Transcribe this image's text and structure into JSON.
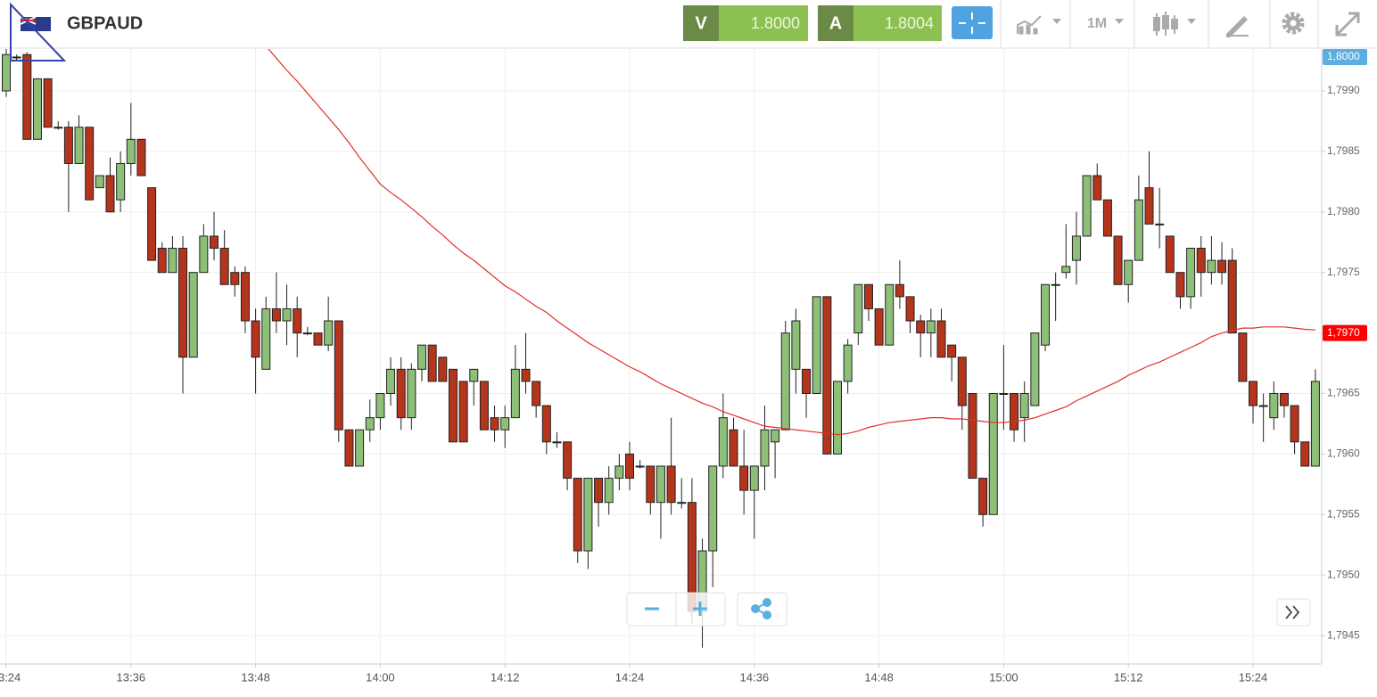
{
  "header": {
    "bid_label": "V",
    "bid": "1.8000",
    "ask_label": "A",
    "ask": "1.8004",
    "interval": "1M"
  },
  "chart_data": {
    "type": "candlestick",
    "title": "GBPAUD",
    "x": [
      "13:24",
      "13:25",
      "13:26",
      "13:27",
      "13:28",
      "13:29",
      "13:30",
      "13:31",
      "13:32",
      "13:33",
      "13:34",
      "13:35",
      "13:36",
      "13:37",
      "13:38",
      "13:39",
      "13:40",
      "13:41",
      "13:42",
      "13:43",
      "13:44",
      "13:45",
      "13:46",
      "13:47",
      "13:48",
      "13:49",
      "13:50",
      "13:51",
      "13:52",
      "13:53",
      "13:54",
      "13:55",
      "13:56",
      "13:57",
      "13:58",
      "13:59",
      "14:00",
      "14:01",
      "14:02",
      "14:03",
      "14:04",
      "14:05",
      "14:06",
      "14:07",
      "14:08",
      "14:09",
      "14:10",
      "14:11",
      "14:12",
      "14:13",
      "14:14",
      "14:15",
      "14:16",
      "14:17",
      "14:18",
      "14:19",
      "14:20",
      "14:21",
      "14:22",
      "14:23",
      "14:24",
      "14:25",
      "14:26",
      "14:27",
      "14:28",
      "14:29",
      "14:30",
      "14:31",
      "14:32",
      "14:33",
      "14:34",
      "14:35",
      "14:36",
      "14:37",
      "14:38",
      "14:39",
      "14:40",
      "14:41",
      "14:42",
      "14:43",
      "14:44",
      "14:45",
      "14:46",
      "14:47",
      "14:48",
      "14:49",
      "14:50",
      "14:51",
      "14:52",
      "14:53",
      "14:54",
      "14:55",
      "14:56",
      "14:57",
      "14:58",
      "14:59",
      "15:00",
      "15:01",
      "15:02",
      "15:03",
      "15:04",
      "15:05",
      "15:06",
      "15:07",
      "15:08",
      "15:09",
      "15:10",
      "15:11",
      "15:12",
      "15:13",
      "15:14",
      "15:15",
      "15:16",
      "15:17",
      "15:18",
      "15:19",
      "15:20",
      "15:21",
      "15:22",
      "15:23",
      "15:24",
      "15:25",
      "15:26",
      "15:27",
      "15:28",
      "15:29",
      "15:30"
    ],
    "open": [
      1.799,
      1.79928,
      1.7993,
      1.7986,
      1.7991,
      1.7987,
      1.7987,
      1.7984,
      1.7987,
      1.7982,
      1.7983,
      1.7981,
      1.7984,
      1.7986,
      1.7982,
      1.7977,
      1.7975,
      1.7977,
      1.7968,
      1.7975,
      1.7978,
      1.7977,
      1.7975,
      1.7975,
      1.7971,
      1.7967,
      1.7972,
      1.7971,
      1.7972,
      1.797,
      1.797,
      1.7969,
      1.7971,
      1.7962,
      1.7959,
      1.7962,
      1.7963,
      1.7965,
      1.7967,
      1.7963,
      1.7967,
      1.7969,
      1.7968,
      1.7967,
      1.7966,
      1.7966,
      1.7966,
      1.7963,
      1.7962,
      1.7963,
      1.7967,
      1.7966,
      1.7964,
      1.7961,
      1.7961,
      1.7958,
      1.7952,
      1.7958,
      1.7956,
      1.7958,
      1.796,
      1.7959,
      1.7959,
      1.7956,
      1.7959,
      1.7956,
      1.7956,
      1.7947,
      1.7952,
      1.7959,
      1.7962,
      1.7959,
      1.7957,
      1.7959,
      1.7961,
      1.7962,
      1.7967,
      1.7967,
      1.7965,
      1.7973,
      1.796,
      1.7966,
      1.797,
      1.7974,
      1.7972,
      1.7969,
      1.7974,
      1.7973,
      1.7971,
      1.797,
      1.7971,
      1.7969,
      1.7968,
      1.7965,
      1.7958,
      1.7955,
      1.7965,
      1.7965,
      1.7963,
      1.7964,
      1.7969,
      1.7974,
      1.7975,
      1.7976,
      1.7978,
      1.7983,
      1.7981,
      1.7978,
      1.7974,
      1.7976,
      1.7982,
      1.7979,
      1.7978,
      1.7975,
      1.7973,
      1.7977,
      1.7975,
      1.7976,
      1.7976,
      1.797,
      1.7966,
      1.7964,
      1.7963,
      1.7965,
      1.7964,
      1.7961,
      1.7959
    ],
    "high": [
      1.79935,
      1.7993,
      1.79932,
      1.7991,
      1.7991,
      1.79875,
      1.79875,
      1.7988,
      1.7987,
      1.7983,
      1.79845,
      1.7985,
      1.7989,
      1.7986,
      1.7982,
      1.79775,
      1.7978,
      1.7978,
      1.7975,
      1.7979,
      1.798,
      1.79785,
      1.79755,
      1.79755,
      1.7972,
      1.7973,
      1.7975,
      1.7974,
      1.7973,
      1.79705,
      1.797,
      1.7973,
      1.7971,
      1.7962,
      1.7962,
      1.79645,
      1.7965,
      1.7968,
      1.7968,
      1.79675,
      1.7969,
      1.7969,
      1.7968,
      1.7967,
      1.7966,
      1.7967,
      1.7966,
      1.7964,
      1.7964,
      1.7969,
      1.797,
      1.7966,
      1.7964,
      1.79618,
      1.7961,
      1.7958,
      1.7958,
      1.7958,
      1.7959,
      1.796,
      1.7961,
      1.79595,
      1.7959,
      1.7959,
      1.7963,
      1.7958,
      1.7958,
      1.7953,
      1.7959,
      1.7965,
      1.7963,
      1.7962,
      1.7959,
      1.7964,
      1.7962,
      1.7971,
      1.7972,
      1.7967,
      1.7973,
      1.7973,
      1.7966,
      1.79695,
      1.7974,
      1.7974,
      1.7972,
      1.7974,
      1.7976,
      1.7973,
      1.79715,
      1.7972,
      1.7972,
      1.7969,
      1.7968,
      1.7965,
      1.7958,
      1.7965,
      1.7969,
      1.7965,
      1.7966,
      1.797,
      1.7974,
      1.7975,
      1.7979,
      1.798,
      1.7983,
      1.7984,
      1.7981,
      1.7978,
      1.7976,
      1.7983,
      1.7985,
      1.7982,
      1.7978,
      1.7975,
      1.7977,
      1.7978,
      1.7978,
      1.79775,
      1.7977,
      1.797,
      1.7966,
      1.7965,
      1.7966,
      1.7965,
      1.7964,
      1.7961,
      1.7967
    ],
    "low": [
      1.79895,
      1.79925,
      1.7986,
      1.7986,
      1.7987,
      1.79868,
      1.798,
      1.7984,
      1.7981,
      1.7982,
      1.798,
      1.798,
      1.7983,
      1.7983,
      1.7976,
      1.7975,
      1.7975,
      1.7965,
      1.7968,
      1.7975,
      1.7976,
      1.7974,
      1.7973,
      1.797,
      1.7965,
      1.7967,
      1.797,
      1.7969,
      1.7968,
      1.79698,
      1.7969,
      1.79685,
      1.7961,
      1.7959,
      1.7959,
      1.7961,
      1.7962,
      1.7964,
      1.7962,
      1.7962,
      1.7966,
      1.7966,
      1.7966,
      1.7961,
      1.7961,
      1.7964,
      1.7962,
      1.7961,
      1.79605,
      1.7963,
      1.7965,
      1.7963,
      1.796,
      1.79605,
      1.7957,
      1.7951,
      1.79505,
      1.7954,
      1.7955,
      1.7957,
      1.7957,
      1.79588,
      1.7955,
      1.7953,
      1.7955,
      1.79555,
      1.7946,
      1.7944,
      1.7949,
      1.7958,
      1.7959,
      1.7955,
      1.7953,
      1.7957,
      1.7958,
      1.7962,
      1.7965,
      1.7963,
      1.7965,
      1.796,
      1.796,
      1.7965,
      1.7969,
      1.7971,
      1.7969,
      1.7969,
      1.7972,
      1.797,
      1.7968,
      1.7968,
      1.7968,
      1.7966,
      1.7962,
      1.7958,
      1.7954,
      1.7955,
      1.7962,
      1.7961,
      1.7961,
      1.7964,
      1.79685,
      1.7971,
      1.79745,
      1.7974,
      1.7978,
      1.7981,
      1.7978,
      1.7974,
      1.79725,
      1.7976,
      1.7979,
      1.7977,
      1.7975,
      1.7972,
      1.7972,
      1.7973,
      1.7974,
      1.7974,
      1.797,
      1.7966,
      1.79625,
      1.7961,
      1.7962,
      1.7963,
      1.796,
      1.7959,
      1.7959
    ],
    "close": [
      1.7993,
      1.79928,
      1.7986,
      1.7991,
      1.7987,
      1.7987,
      1.7984,
      1.7987,
      1.7981,
      1.7983,
      1.798,
      1.7984,
      1.7986,
      1.7983,
      1.7976,
      1.7975,
      1.7977,
      1.7968,
      1.7975,
      1.7978,
      1.7977,
      1.7974,
      1.7974,
      1.7971,
      1.7968,
      1.7972,
      1.7971,
      1.7972,
      1.797,
      1.797,
      1.7969,
      1.7971,
      1.7962,
      1.7959,
      1.7962,
      1.7963,
      1.7965,
      1.7967,
      1.7963,
      1.7967,
      1.7969,
      1.7966,
      1.7966,
      1.7961,
      1.7961,
      1.7967,
      1.7962,
      1.7962,
      1.7963,
      1.7967,
      1.7966,
      1.7964,
      1.7961,
      1.7961,
      1.7958,
      1.7952,
      1.7958,
      1.7956,
      1.7958,
      1.7959,
      1.7958,
      1.7959,
      1.7956,
      1.7959,
      1.7956,
      1.7956,
      1.7947,
      1.7952,
      1.7959,
      1.7963,
      1.7959,
      1.7957,
      1.7959,
      1.7962,
      1.7962,
      1.797,
      1.7971,
      1.7965,
      1.7973,
      1.796,
      1.7966,
      1.7969,
      1.7974,
      1.7972,
      1.7969,
      1.7974,
      1.7973,
      1.7971,
      1.797,
      1.7971,
      1.7968,
      1.7968,
      1.7964,
      1.7958,
      1.7955,
      1.7965,
      1.7965,
      1.7962,
      1.7965,
      1.797,
      1.7974,
      1.7974,
      1.79755,
      1.7978,
      1.7983,
      1.7981,
      1.7978,
      1.7974,
      1.7976,
      1.7981,
      1.7979,
      1.7979,
      1.7975,
      1.7973,
      1.7977,
      1.7975,
      1.7976,
      1.7975,
      1.797,
      1.7966,
      1.7964,
      1.7964,
      1.7965,
      1.7964,
      1.7961,
      1.7959,
      1.7966
    ],
    "up_color": "#8dbf78",
    "down_color": "#b5351c",
    "lines": [
      {
        "color": "#e0302a",
        "values": [
          null,
          null,
          null,
          null,
          null,
          null,
          null,
          null,
          null,
          null,
          null,
          null,
          null,
          null,
          null,
          null,
          null,
          null,
          null,
          null,
          null,
          null,
          null,
          null,
          null,
          1.79937,
          1.79927,
          1.79917,
          1.79908,
          1.79898,
          1.79888,
          1.79878,
          1.79868,
          1.79857,
          1.79845,
          1.79834,
          1.79823,
          1.79816,
          1.7981,
          1.79803,
          1.79796,
          1.79788,
          1.79781,
          1.79773,
          1.79766,
          1.7976,
          1.79753,
          1.79746,
          1.79739,
          1.79734,
          1.79728,
          1.79722,
          1.79717,
          1.7971,
          1.79704,
          1.79698,
          1.79692,
          1.79687,
          1.79682,
          1.79677,
          1.79672,
          1.79668,
          1.79663,
          1.79658,
          1.79654,
          1.7965,
          1.79646,
          1.79642,
          1.79639,
          1.79635,
          1.79632,
          1.79629,
          1.79626,
          1.79623,
          1.79622,
          1.79621,
          1.7962,
          1.79619,
          1.79618,
          1.79617,
          1.79616,
          1.79617,
          1.79619,
          1.79622,
          1.79624,
          1.79626,
          1.79627,
          1.79628,
          1.79629,
          1.7963,
          1.7963,
          1.79629,
          1.79629,
          1.79628,
          1.79627,
          1.79626,
          1.79626,
          1.79627,
          1.79628,
          1.7963,
          1.79633,
          1.79636,
          1.79639,
          1.79644,
          1.79648,
          1.79652,
          1.79656,
          1.7966,
          1.79665,
          1.79669,
          1.79673,
          1.79676,
          1.7968,
          1.79684,
          1.79688,
          1.79692,
          1.79697,
          1.797,
          1.79702,
          1.79704,
          1.79704,
          1.79705,
          1.79705,
          1.79705,
          1.79704,
          1.79703,
          1.797025
        ]
      }
    ],
    "ylim": [
      1.794265,
      1.799346
    ],
    "yticks": [
      {
        "value": 1.7945,
        "label": "1,7945"
      },
      {
        "value": 1.795,
        "label": "1,7950"
      },
      {
        "value": 1.7955,
        "label": "1,7955"
      },
      {
        "value": 1.796,
        "label": "1,7960"
      },
      {
        "value": 1.7965,
        "label": "1,7965"
      },
      {
        "value": 1.797,
        "label": "1,7970"
      },
      {
        "value": 1.7975,
        "label": "1,7975"
      },
      {
        "value": 1.798,
        "label": "1,7980"
      },
      {
        "value": 1.7985,
        "label": "1,7985"
      },
      {
        "value": 1.799,
        "label": "1,7990"
      }
    ],
    "xticks": [
      "13:24",
      "13:36",
      "13:48",
      "14:00",
      "14:12",
      "14:24",
      "14:36",
      "14:48",
      "15:00",
      "15:12",
      "15:24"
    ],
    "grid": true,
    "price_labels": [
      {
        "value": 1.8,
        "label": "1,8000",
        "color": "#5aaee0"
      },
      {
        "value": 1.797,
        "label": "1,7970",
        "color": "#ff0000"
      }
    ]
  }
}
